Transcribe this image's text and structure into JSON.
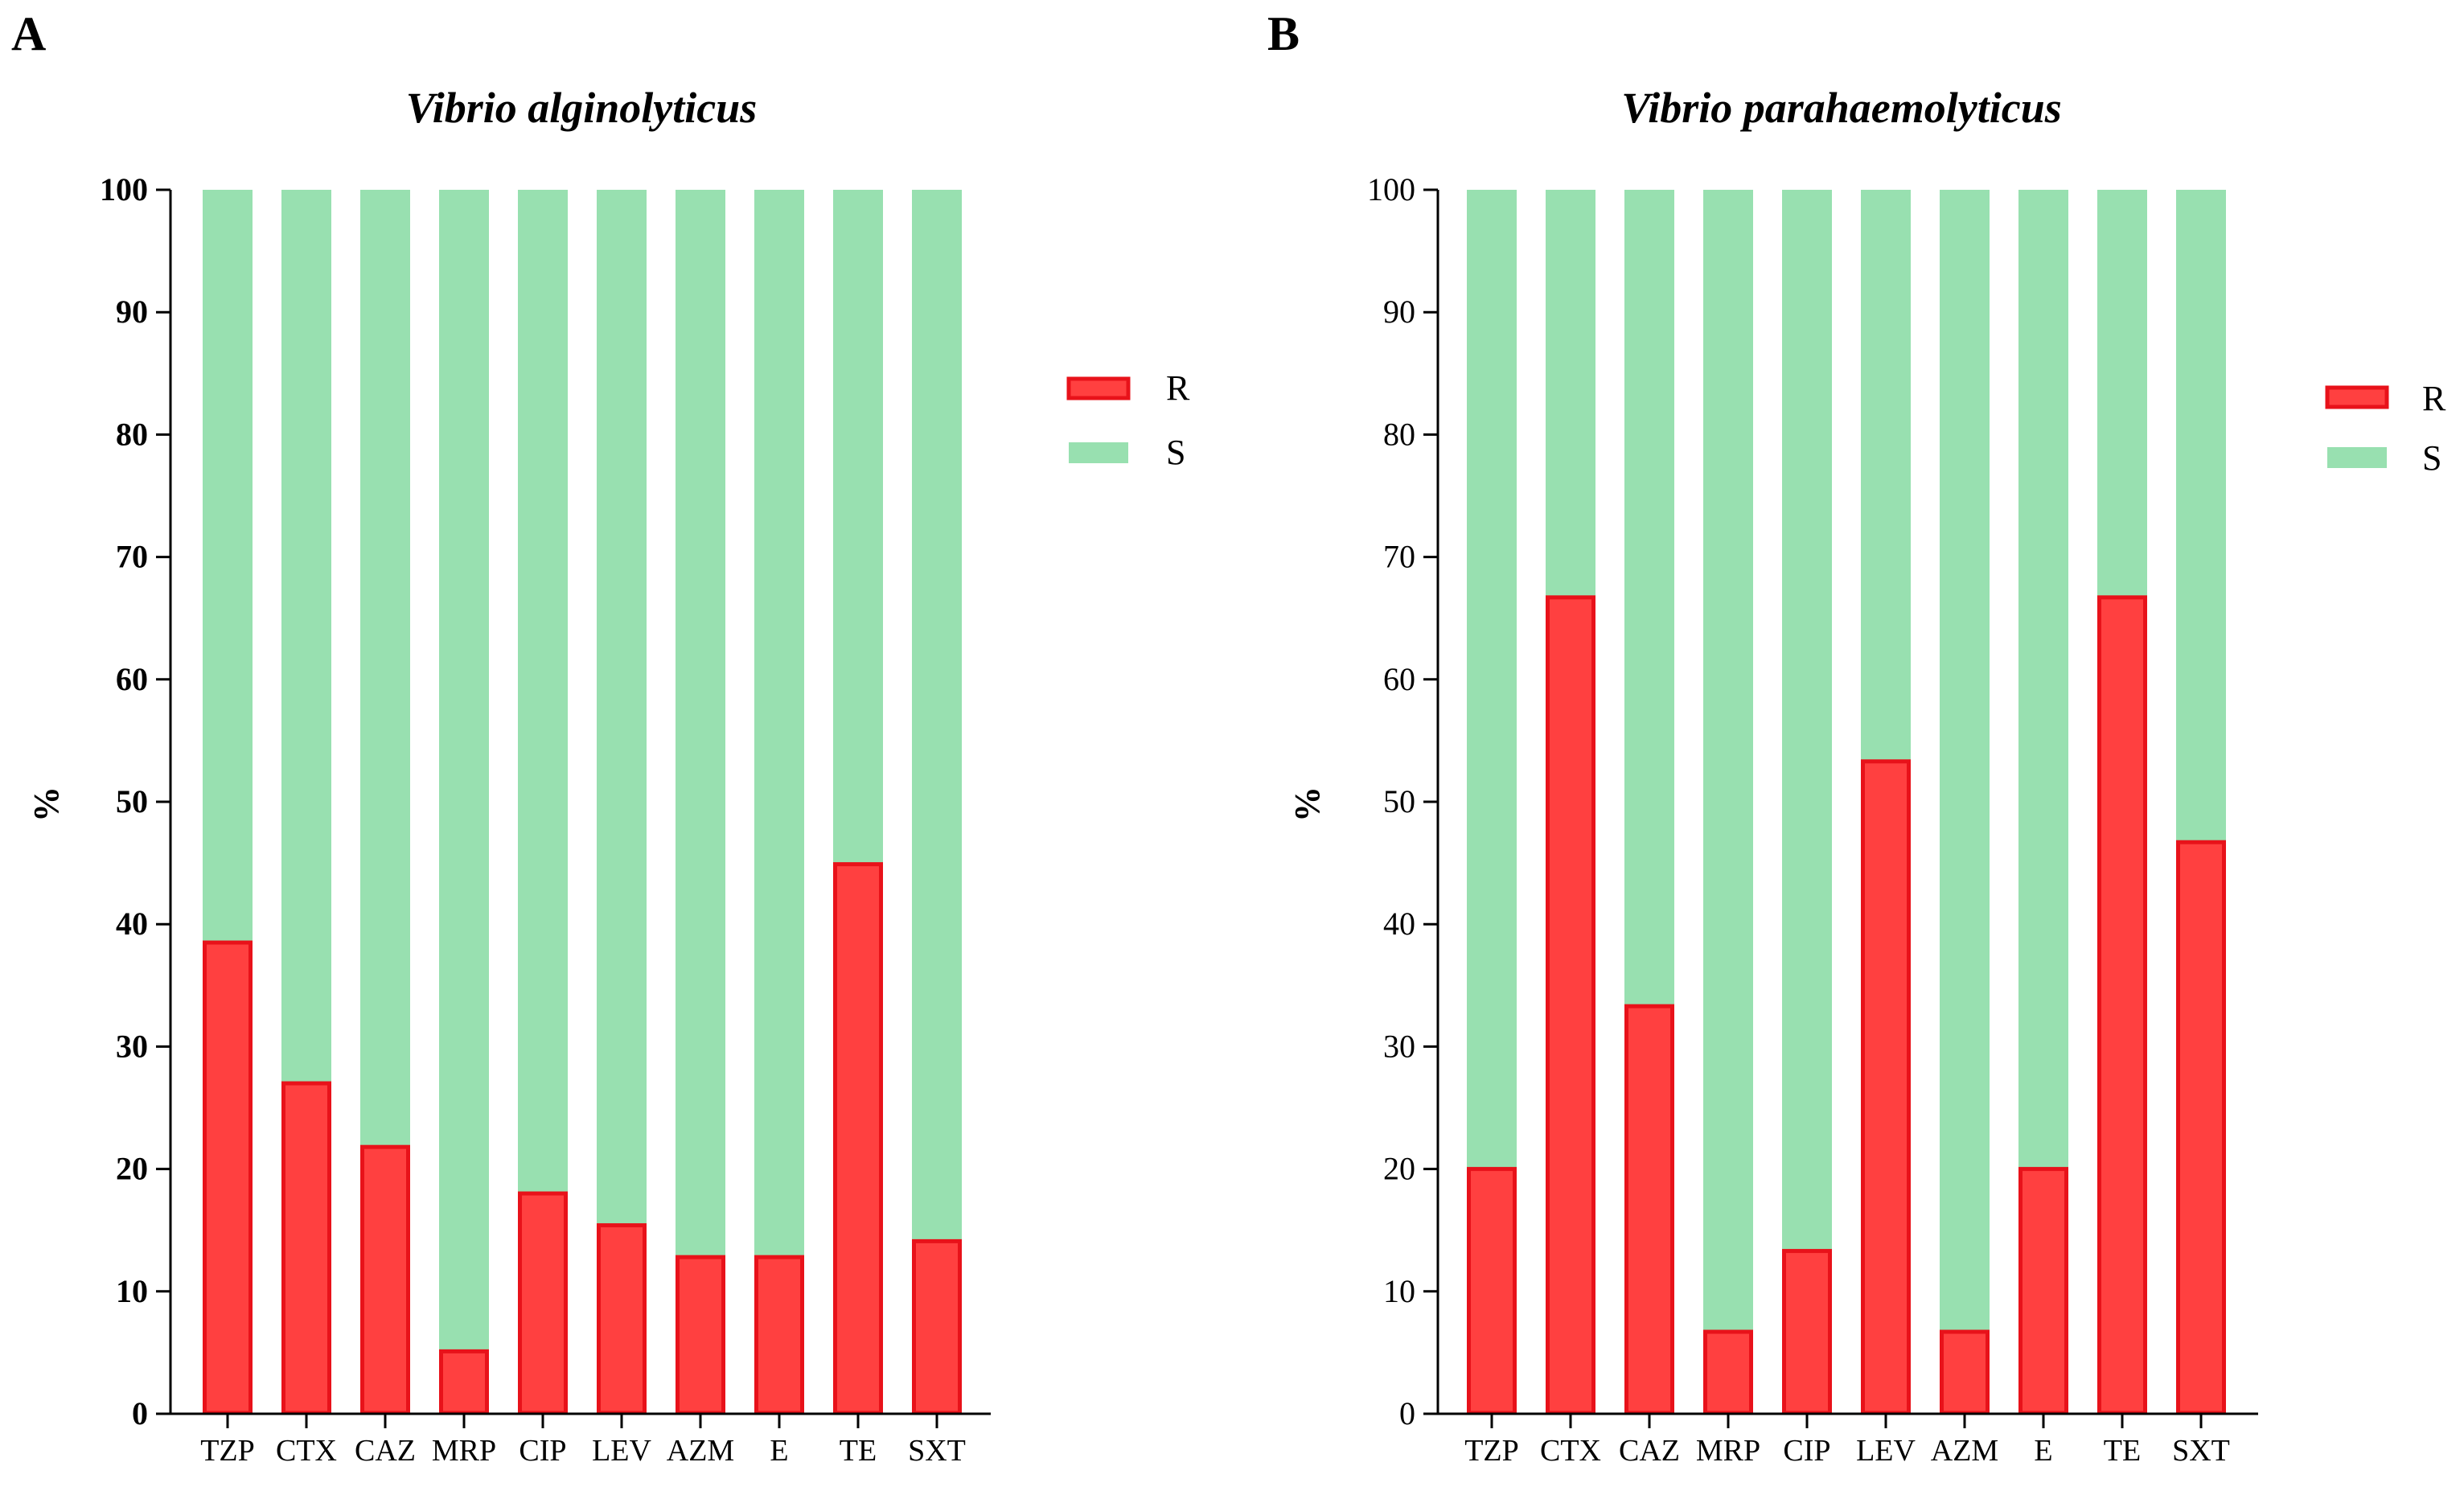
{
  "figure": {
    "panels": [
      {
        "letter": "A"
      },
      {
        "letter": "B"
      }
    ]
  },
  "colors": {
    "R_fill": "#ff4040",
    "R_stroke": "#e8121a",
    "S_fill": "#98e0b0"
  },
  "chart_data": [
    {
      "type": "bar",
      "stacked": true,
      "panel": "A",
      "title": "Vibrio alginolyticus",
      "xlabel": "",
      "ylabel": "%",
      "ylim": [
        0,
        100
      ],
      "yticks": [
        0,
        10,
        20,
        30,
        40,
        50,
        60,
        70,
        80,
        90,
        100
      ],
      "categories": [
        "TZP",
        "CTX",
        "CAZ",
        "MRP",
        "CIP",
        "LEV",
        "AZM",
        "E",
        "TE",
        "SXT"
      ],
      "series": [
        {
          "name": "R",
          "values": [
            38.5,
            27,
            21.8,
            5.1,
            18,
            15.4,
            12.8,
            12.8,
            44.9,
            14.1
          ]
        },
        {
          "name": "S",
          "values": [
            61.5,
            73,
            78.2,
            94.9,
            82,
            84.6,
            87.2,
            87.2,
            55.1,
            85.9
          ]
        }
      ],
      "legend": {
        "position": "right",
        "entries": [
          "R",
          "S"
        ]
      }
    },
    {
      "type": "bar",
      "stacked": true,
      "panel": "B",
      "title": "Vibrio parahaemolyticus",
      "xlabel": "",
      "ylabel": "%",
      "ylim": [
        0,
        100
      ],
      "yticks": [
        0,
        10,
        20,
        30,
        40,
        50,
        60,
        70,
        80,
        90,
        100
      ],
      "categories": [
        "TZP",
        "CTX",
        "CAZ",
        "MRP",
        "CIP",
        "LEV",
        "AZM",
        "E",
        "TE",
        "SXT"
      ],
      "series": [
        {
          "name": "R",
          "values": [
            20,
            66.7,
            33.3,
            6.7,
            13.3,
            53.3,
            6.7,
            20,
            66.7,
            46.7
          ]
        },
        {
          "name": "S",
          "values": [
            80,
            33.3,
            66.7,
            93.3,
            86.7,
            46.7,
            93.3,
            80,
            33.3,
            53.3
          ]
        }
      ],
      "legend": {
        "position": "right",
        "entries": [
          "R",
          "S"
        ]
      }
    }
  ]
}
